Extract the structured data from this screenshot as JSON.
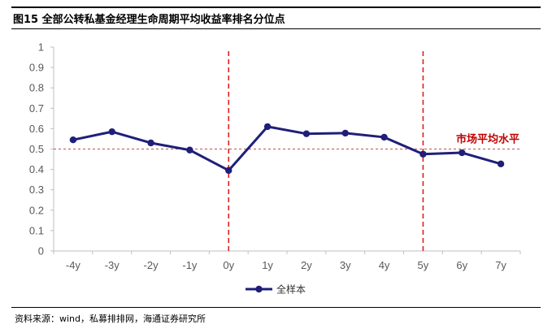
{
  "figure": {
    "title": "图15 全部公转私基金经理生命周期平均收益率排名分位点",
    "source": "资料来源：wind，私募排排网，海通证券研究所"
  },
  "chart_data": {
    "type": "line",
    "categories": [
      "-4y",
      "-3y",
      "-2y",
      "-1y",
      "0y",
      "1y",
      "2y",
      "3y",
      "4y",
      "5y",
      "6y",
      "7y"
    ],
    "series": [
      {
        "name": "全样本",
        "values": [
          0.545,
          0.585,
          0.53,
          0.495,
          0.395,
          0.61,
          0.575,
          0.578,
          0.558,
          0.475,
          0.482,
          0.427
        ],
        "color": "#1F1F7A",
        "marker": "circle"
      }
    ],
    "ylim": [
      0,
      1
    ],
    "yticks": [
      0,
      0.1,
      0.2,
      0.3,
      0.4,
      0.5,
      0.6,
      0.7,
      0.8,
      0.9,
      1
    ],
    "ytick_labels": [
      "0",
      "0.1",
      "0.2",
      "0.3",
      "0.4",
      "0.5",
      "0.6",
      "0.7",
      "0.8",
      "0.9",
      "1"
    ],
    "reference_lines": [
      {
        "axis": "y",
        "value": 0.5,
        "style": "dashed",
        "color": "#C0504D",
        "label": "市场平均水平"
      },
      {
        "axis": "x",
        "value": "0y",
        "style": "dashed",
        "color": "#E02020"
      },
      {
        "axis": "x",
        "value": "5y",
        "style": "dashed",
        "color": "#E02020"
      }
    ],
    "grid": false,
    "legend_position": "bottom-center",
    "annotation_color": "#C00000"
  }
}
